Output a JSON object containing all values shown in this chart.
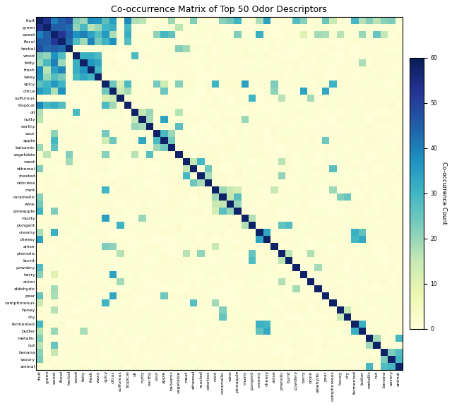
{
  "labels": [
    "fruit",
    "green",
    "sweet",
    "floral",
    "herbal",
    "wood",
    "fatty",
    "fresh",
    "waxy",
    "spicy",
    "citrus",
    "sulfurous",
    "tropical",
    "oil",
    "nutty",
    "earthy",
    "sour",
    "apple",
    "balsamic",
    "vegetable",
    "meat",
    "ethereal",
    "roasted",
    "odorless",
    "mint",
    "caramellic",
    "wine",
    "pineapple",
    "musty",
    "pungent",
    "creamy",
    "cheesy",
    "anise",
    "phenolic",
    "burnt",
    "powdery",
    "berry",
    "onion",
    "aldehydic",
    "pear",
    "camphoreous",
    "honey",
    "dry",
    "fermented",
    "butter",
    "metallic",
    "nut",
    "banana",
    "savory",
    "animal"
  ],
  "title": "Co-occurrence Matrix of Top 50 Odor Descriptors",
  "colorbar_label": "Co-occurrence Count",
  "cmap": "YlGnBu",
  "vmin": 0,
  "vmax": 60,
  "figsize": [
    6.4,
    5.75
  ],
  "dpi": 100
}
